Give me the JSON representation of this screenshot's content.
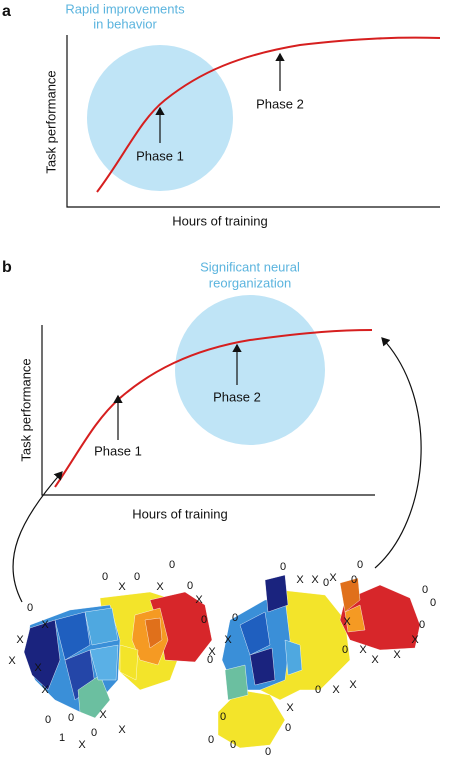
{
  "panel_a": {
    "label": "a",
    "circle_label": [
      "Rapid improvements",
      "in behavior"
    ],
    "y_axis_label": "Task performance",
    "x_axis_label": "Hours of training",
    "phase_1": "Phase 1",
    "phase_2": "Phase 2"
  },
  "panel_b": {
    "label": "b",
    "circle_label": [
      "Significant neural",
      "reorganization"
    ],
    "y_axis_label": "Task performance",
    "x_axis_label": "Hours of training",
    "phase_1": "Phase 1",
    "phase_2": "Phase 2"
  },
  "map_left": {
    "markers": [
      "0",
      "X",
      "0",
      "0",
      "X",
      "0",
      "X",
      "0",
      "X",
      "0",
      "X",
      "X",
      "X",
      "X",
      "X",
      "0",
      "X",
      "0",
      "X",
      "1",
      "0",
      "X"
    ]
  },
  "map_right": {
    "markers": [
      "0",
      "0",
      "X",
      "X",
      "0",
      "X",
      "0",
      "0",
      "0",
      "X",
      "0",
      "X",
      "X",
      "X",
      "X",
      "0",
      "0",
      "X",
      "0",
      "0",
      "X",
      "X",
      "X",
      "0",
      "0",
      "0",
      "0",
      "0"
    ]
  }
}
